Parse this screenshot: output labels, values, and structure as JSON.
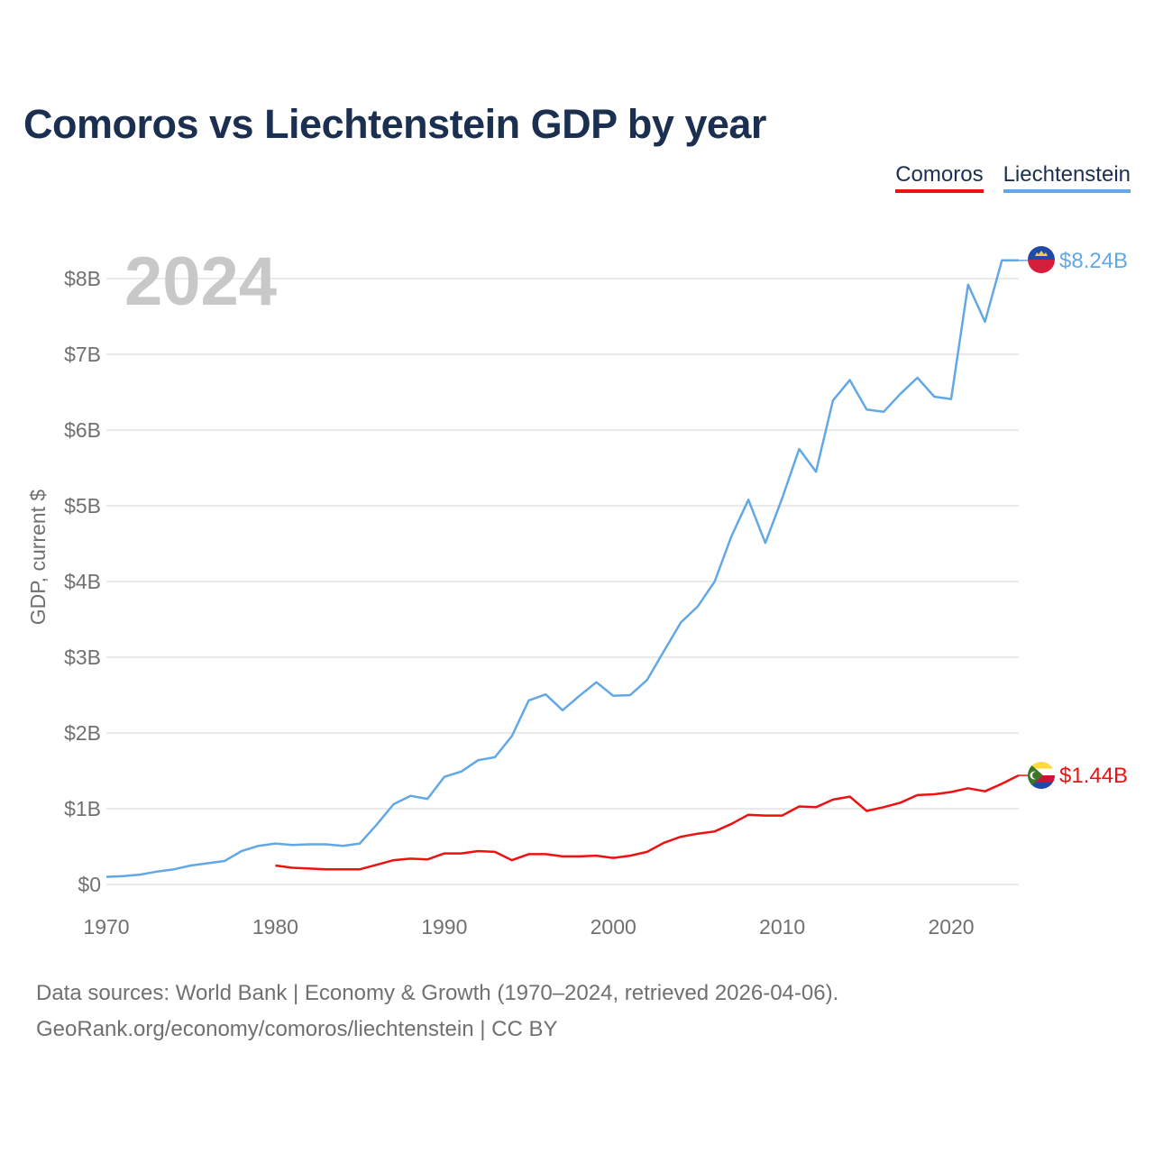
{
  "title": "Comoros vs Liechtenstein GDP by year",
  "legend": {
    "comoros": "Comoros",
    "liechtenstein": "Liechtenstein"
  },
  "footer": {
    "line1": "Data sources: World Bank | Economy & Growth (1970–2024, retrieved 2026-04-06).",
    "line2": "GeoRank.org/economy/comoros/liechtenstein | CC BY"
  },
  "chart_data": {
    "type": "line",
    "title": "Comoros vs Liechtenstein GDP by year",
    "year_label": "2024",
    "ylabel": "GDP, current $",
    "xlabel": "",
    "xlim": [
      1970,
      2024
    ],
    "ylim": [
      0,
      8.5
    ],
    "y_unit": "billions USD",
    "grid": true,
    "legend_position": "top-right",
    "x_ticks": [
      1970,
      1980,
      1990,
      2000,
      2010,
      2020
    ],
    "y_ticks": [
      {
        "value": 0,
        "label": "$0"
      },
      {
        "value": 1,
        "label": "$1B"
      },
      {
        "value": 2,
        "label": "$2B"
      },
      {
        "value": 3,
        "label": "$3B"
      },
      {
        "value": 4,
        "label": "$4B"
      },
      {
        "value": 5,
        "label": "$5B"
      },
      {
        "value": 6,
        "label": "$6B"
      },
      {
        "value": 7,
        "label": "$7B"
      },
      {
        "value": 8,
        "label": "$8B"
      }
    ],
    "series": [
      {
        "name": "Liechtenstein",
        "color": "#62a8e5",
        "end_label": "$8.24B",
        "x": [
          1970,
          1971,
          1972,
          1973,
          1974,
          1975,
          1976,
          1977,
          1978,
          1979,
          1980,
          1981,
          1982,
          1983,
          1984,
          1985,
          1986,
          1987,
          1988,
          1989,
          1990,
          1991,
          1992,
          1993,
          1994,
          1995,
          1996,
          1997,
          1998,
          1999,
          2000,
          2001,
          2002,
          2003,
          2004,
          2005,
          2006,
          2007,
          2008,
          2009,
          2010,
          2011,
          2012,
          2013,
          2014,
          2015,
          2016,
          2017,
          2018,
          2019,
          2020,
          2021,
          2022,
          2023,
          2024
        ],
        "values": [
          0.1,
          0.11,
          0.13,
          0.17,
          0.2,
          0.25,
          0.28,
          0.31,
          0.44,
          0.51,
          0.54,
          0.52,
          0.53,
          0.53,
          0.51,
          0.54,
          0.79,
          1.06,
          1.17,
          1.13,
          1.42,
          1.49,
          1.64,
          1.68,
          1.96,
          2.43,
          2.51,
          2.3,
          2.49,
          2.67,
          2.49,
          2.5,
          2.7,
          3.08,
          3.46,
          3.67,
          4.0,
          4.6,
          5.08,
          4.51,
          5.1,
          5.75,
          5.45,
          6.39,
          6.66,
          6.27,
          6.24,
          6.48,
          6.69,
          6.44,
          6.41,
          7.92,
          7.43,
          8.24,
          8.24
        ]
      },
      {
        "name": "Comoros",
        "color": "#ee1111",
        "end_label": "$1.44B",
        "x": [
          1980,
          1981,
          1982,
          1983,
          1984,
          1985,
          1986,
          1987,
          1988,
          1989,
          1990,
          1991,
          1992,
          1993,
          1994,
          1995,
          1996,
          1997,
          1998,
          1999,
          2000,
          2001,
          2002,
          2003,
          2004,
          2005,
          2006,
          2007,
          2008,
          2009,
          2010,
          2011,
          2012,
          2013,
          2014,
          2015,
          2016,
          2017,
          2018,
          2019,
          2020,
          2021,
          2022,
          2023,
          2024
        ],
        "values": [
          0.25,
          0.22,
          0.21,
          0.2,
          0.2,
          0.2,
          0.26,
          0.32,
          0.34,
          0.33,
          0.41,
          0.41,
          0.44,
          0.43,
          0.32,
          0.4,
          0.4,
          0.37,
          0.37,
          0.38,
          0.35,
          0.38,
          0.43,
          0.55,
          0.63,
          0.67,
          0.7,
          0.8,
          0.92,
          0.91,
          0.91,
          1.03,
          1.02,
          1.12,
          1.16,
          0.97,
          1.02,
          1.08,
          1.18,
          1.19,
          1.22,
          1.27,
          1.23,
          1.33,
          1.44
        ]
      }
    ]
  }
}
